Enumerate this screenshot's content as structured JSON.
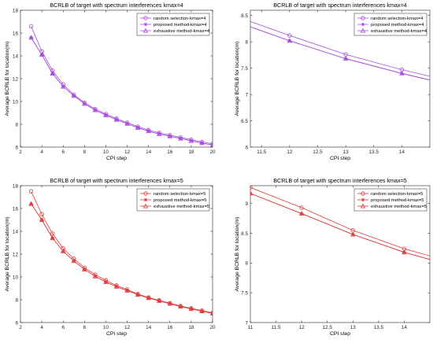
{
  "chart_data": [
    {
      "type": "line",
      "title": "BCRLB of target with spectrum  interferences kmax=4",
      "xlabel": "CPI step",
      "ylabel": "Average BCRLB for location(m)",
      "xlim": [
        2,
        20
      ],
      "ylim": [
        6,
        18
      ],
      "xticks": [
        2,
        4,
        6,
        8,
        10,
        12,
        14,
        16,
        18,
        20
      ],
      "yticks": [
        6,
        8,
        10,
        12,
        14,
        16,
        18
      ],
      "xtick_labels": [
        "2",
        "4",
        "6",
        "8",
        "10",
        "12",
        "14",
        "16",
        "18",
        "20"
      ],
      "ytick_labels": [
        "6",
        "8",
        "10",
        "12",
        "14",
        "16",
        "18"
      ],
      "grid": false,
      "legend": "top-right",
      "color": "#a64dd9",
      "x": [
        3,
        4,
        5,
        6,
        7,
        8,
        9,
        10,
        11,
        12,
        13,
        14,
        15,
        16,
        17,
        18,
        19,
        20
      ],
      "series": [
        {
          "name": "random selection-kmax=4",
          "marker": "circle",
          "values": [
            16.6,
            14.4,
            12.7,
            11.5,
            10.6,
            9.9,
            9.35,
            8.9,
            8.5,
            8.15,
            7.8,
            7.5,
            7.25,
            7.05,
            6.85,
            6.65,
            6.45,
            6.3
          ]
        },
        {
          "name": "proposed method-kmax=4",
          "marker": "star",
          "values": [
            15.6,
            14.1,
            12.45,
            11.3,
            10.5,
            9.8,
            9.25,
            8.8,
            8.4,
            8.05,
            7.7,
            7.4,
            7.15,
            6.95,
            6.75,
            6.55,
            6.35,
            6.2
          ]
        },
        {
          "name": "exhaustive method-kmax=4",
          "marker": "triangle",
          "values": [
            15.6,
            14.1,
            12.45,
            11.3,
            10.5,
            9.8,
            9.25,
            8.8,
            8.4,
            8.05,
            7.7,
            7.4,
            7.15,
            6.95,
            6.75,
            6.55,
            6.35,
            6.2
          ]
        }
      ]
    },
    {
      "type": "line",
      "title": "BCRLB of target with spectrum  interferences kmax=4",
      "xlabel": "CPI step",
      "ylabel": "Average BCRLB for location(m)",
      "xlim": [
        11.3,
        14.5
      ],
      "ylim": [
        6,
        8.6
      ],
      "xticks": [
        11.5,
        12,
        12.5,
        13,
        13.5,
        14
      ],
      "yticks": [
        6,
        6.5,
        7,
        7.5,
        8,
        8.5
      ],
      "xtick_labels": [
        "11.5",
        "12",
        "12.5",
        "13",
        "13.5",
        "14"
      ],
      "ytick_labels": [
        "6",
        "6.5",
        "7",
        "7.5",
        "8",
        "8.5"
      ],
      "grid": false,
      "legend": "top-right",
      "color": "#a64dd9",
      "x": [
        11,
        12,
        13,
        14,
        15
      ],
      "series": [
        {
          "name": "random selection-kmax=4",
          "marker": "circle",
          "values": [
            8.5,
            8.12,
            7.76,
            7.47,
            7.22
          ]
        },
        {
          "name": "proposed method-kmax=4",
          "marker": "star",
          "values": [
            8.4,
            8.02,
            7.68,
            7.4,
            7.15
          ]
        },
        {
          "name": "exhaustive method-kmax=4",
          "marker": "triangle",
          "values": [
            8.4,
            8.02,
            7.68,
            7.4,
            7.15
          ]
        }
      ]
    },
    {
      "type": "line",
      "title": "BCRLB of target with spectrum  interferences kmax=5",
      "xlabel": "CPI step",
      "ylabel": "Average BCRLB for location(m)",
      "xlim": [
        2,
        20
      ],
      "ylim": [
        6,
        18
      ],
      "xticks": [
        2,
        4,
        6,
        8,
        10,
        12,
        14,
        16,
        18,
        20
      ],
      "yticks": [
        6,
        8,
        10,
        12,
        14,
        16,
        18
      ],
      "xtick_labels": [
        "2",
        "4",
        "6",
        "8",
        "10",
        "12",
        "14",
        "16",
        "18",
        "20"
      ],
      "ytick_labels": [
        "6",
        "8",
        "10",
        "12",
        "14",
        "16",
        "18"
      ],
      "grid": false,
      "legend": "top-right",
      "color": "#e03c3c",
      "x": [
        3,
        4,
        5,
        6,
        7,
        8,
        9,
        10,
        11,
        12,
        13,
        14,
        15,
        16,
        17,
        18,
        19,
        20
      ],
      "series": [
        {
          "name": "random selection-kmax=5",
          "marker": "circle",
          "values": [
            17.5,
            15.5,
            13.8,
            12.5,
            11.6,
            10.8,
            10.2,
            9.7,
            9.25,
            8.9,
            8.5,
            8.2,
            7.95,
            7.7,
            7.45,
            7.25,
            7.05,
            6.85
          ]
        },
        {
          "name": "proposed method-kmax=5",
          "marker": "star",
          "values": [
            16.4,
            15.0,
            13.4,
            12.25,
            11.4,
            10.65,
            10.05,
            9.55,
            9.15,
            8.8,
            8.45,
            8.15,
            7.9,
            7.65,
            7.4,
            7.2,
            7.0,
            6.8
          ]
        },
        {
          "name": "exhaustive method-kmax=5",
          "marker": "triangle",
          "values": [
            16.4,
            15.0,
            13.4,
            12.25,
            11.4,
            10.65,
            10.05,
            9.55,
            9.15,
            8.8,
            8.45,
            8.15,
            7.9,
            7.65,
            7.4,
            7.2,
            7.0,
            6.8
          ]
        }
      ]
    },
    {
      "type": "line",
      "title": "BCRLB of target with spectrum  interferences kmax=5",
      "xlabel": "CPI step",
      "ylabel": "Average BCRLB for location(m)",
      "xlim": [
        11,
        14.5
      ],
      "ylim": [
        7,
        9.3
      ],
      "xticks": [
        11,
        11.5,
        12,
        12.5,
        13,
        13.5,
        14
      ],
      "yticks": [
        7,
        7.5,
        8,
        8.5,
        9
      ],
      "xtick_labels": [
        "11",
        "11.5",
        "12",
        "12.5",
        "13",
        "13.5",
        "14"
      ],
      "ytick_labels": [
        "7",
        "7.5",
        "8",
        "8.5",
        "9"
      ],
      "grid": false,
      "legend": "top-right",
      "color": "#e03c3c",
      "x": [
        11,
        12,
        13,
        14,
        15
      ],
      "series": [
        {
          "name": "random selection-kmax=5",
          "marker": "circle",
          "values": [
            9.27,
            8.93,
            8.55,
            8.24,
            8.0
          ]
        },
        {
          "name": "proposed method-kmax=5",
          "marker": "star",
          "values": [
            9.17,
            8.83,
            8.48,
            8.18,
            7.94
          ]
        },
        {
          "name": "exhaustive method-kmax=5",
          "marker": "triangle",
          "values": [
            9.17,
            8.83,
            8.48,
            8.18,
            7.94
          ]
        }
      ]
    }
  ]
}
